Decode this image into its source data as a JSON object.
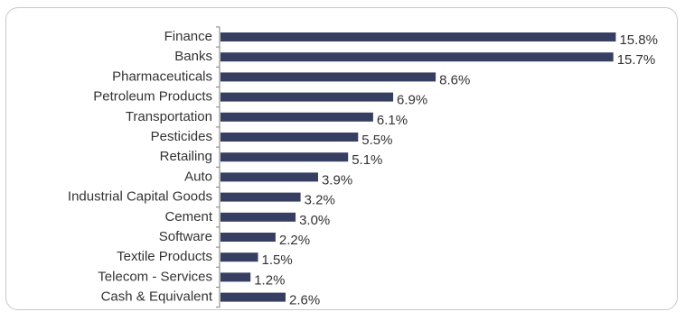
{
  "chart_data": {
    "type": "bar",
    "orientation": "horizontal",
    "categories": [
      "Finance",
      "Banks",
      "Pharmaceuticals",
      "Petroleum Products",
      "Transportation",
      "Pesticides",
      "Retailing",
      "Auto",
      "Industrial Capital Goods",
      "Cement",
      "Software",
      "Textile Products",
      "Telecom - Services",
      "Cash & Equivalent"
    ],
    "values": [
      15.8,
      15.7,
      8.6,
      6.9,
      6.1,
      5.5,
      5.1,
      3.9,
      3.2,
      3.0,
      2.2,
      1.5,
      1.2,
      2.6
    ],
    "value_labels": [
      "15.8%",
      "15.7%",
      "8.6%",
      "6.9%",
      "6.1%",
      "5.5%",
      "5.1%",
      "3.9%",
      "3.2%",
      "3.0%",
      "2.2%",
      "1.5%",
      "1.2%",
      "2.6%"
    ],
    "title": "",
    "xlabel": "",
    "ylabel": "",
    "xlim": [
      0,
      16
    ],
    "grid": false,
    "legend": "none",
    "bar_color": "#363f62",
    "axis_color": "#7f7f7f",
    "text_color": "#333333"
  }
}
